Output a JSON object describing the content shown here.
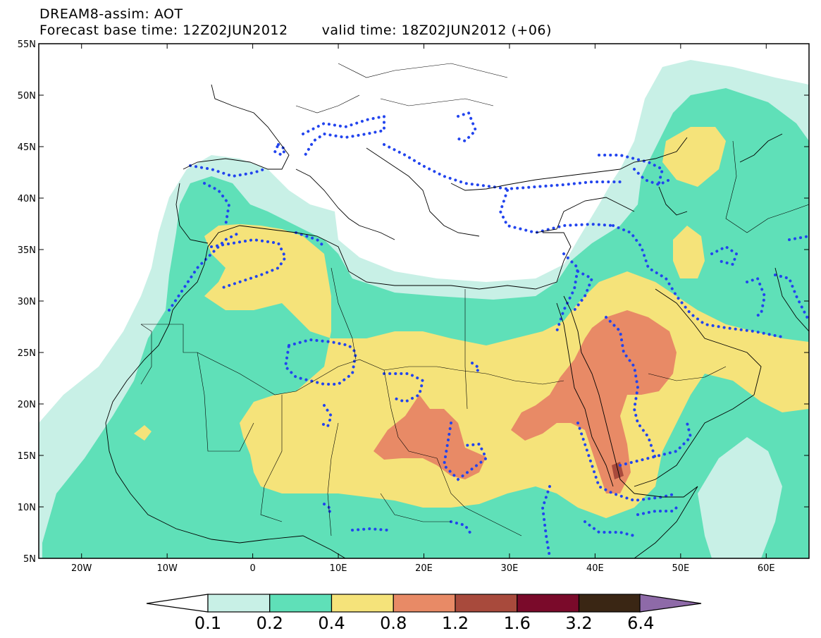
{
  "title": {
    "line1": "DREAM8-assim: AOT",
    "base_time": "Forecast base time: 12Z02JUN2012",
    "valid_time": "valid time: 18Z02JUN2012 (+06)"
  },
  "axes": {
    "y_ticks": [
      "55N",
      "50N",
      "45N",
      "40N",
      "35N",
      "30N",
      "25N",
      "20N",
      "15N",
      "10N",
      "5N"
    ],
    "x_ticks": [
      "20W",
      "10W",
      "0",
      "10E",
      "20E",
      "30E",
      "40E",
      "50E",
      "60E"
    ],
    "lon_range": [
      -25,
      65
    ],
    "lat_range": [
      5,
      55
    ]
  },
  "colorbar": {
    "labels": [
      "0.1",
      "0.2",
      "0.4",
      "0.8",
      "1.2",
      "1.6",
      "3.2",
      "6.4"
    ],
    "colors": [
      "#c8f0e6",
      "#5fe0b8",
      "#f5e37a",
      "#e88a66",
      "#a84a3c",
      "#7a0a2a",
      "#3a2614",
      "#8e6aa8"
    ],
    "under_color": "#ffffff"
  },
  "colors": {
    "level_01": "#c8f0e6",
    "level_02": "#5fe0b8",
    "level_04": "#f5e37a",
    "level_08": "#e88a66",
    "level_12": "#a84a3c",
    "dotted_contour": "#2244ee"
  }
}
